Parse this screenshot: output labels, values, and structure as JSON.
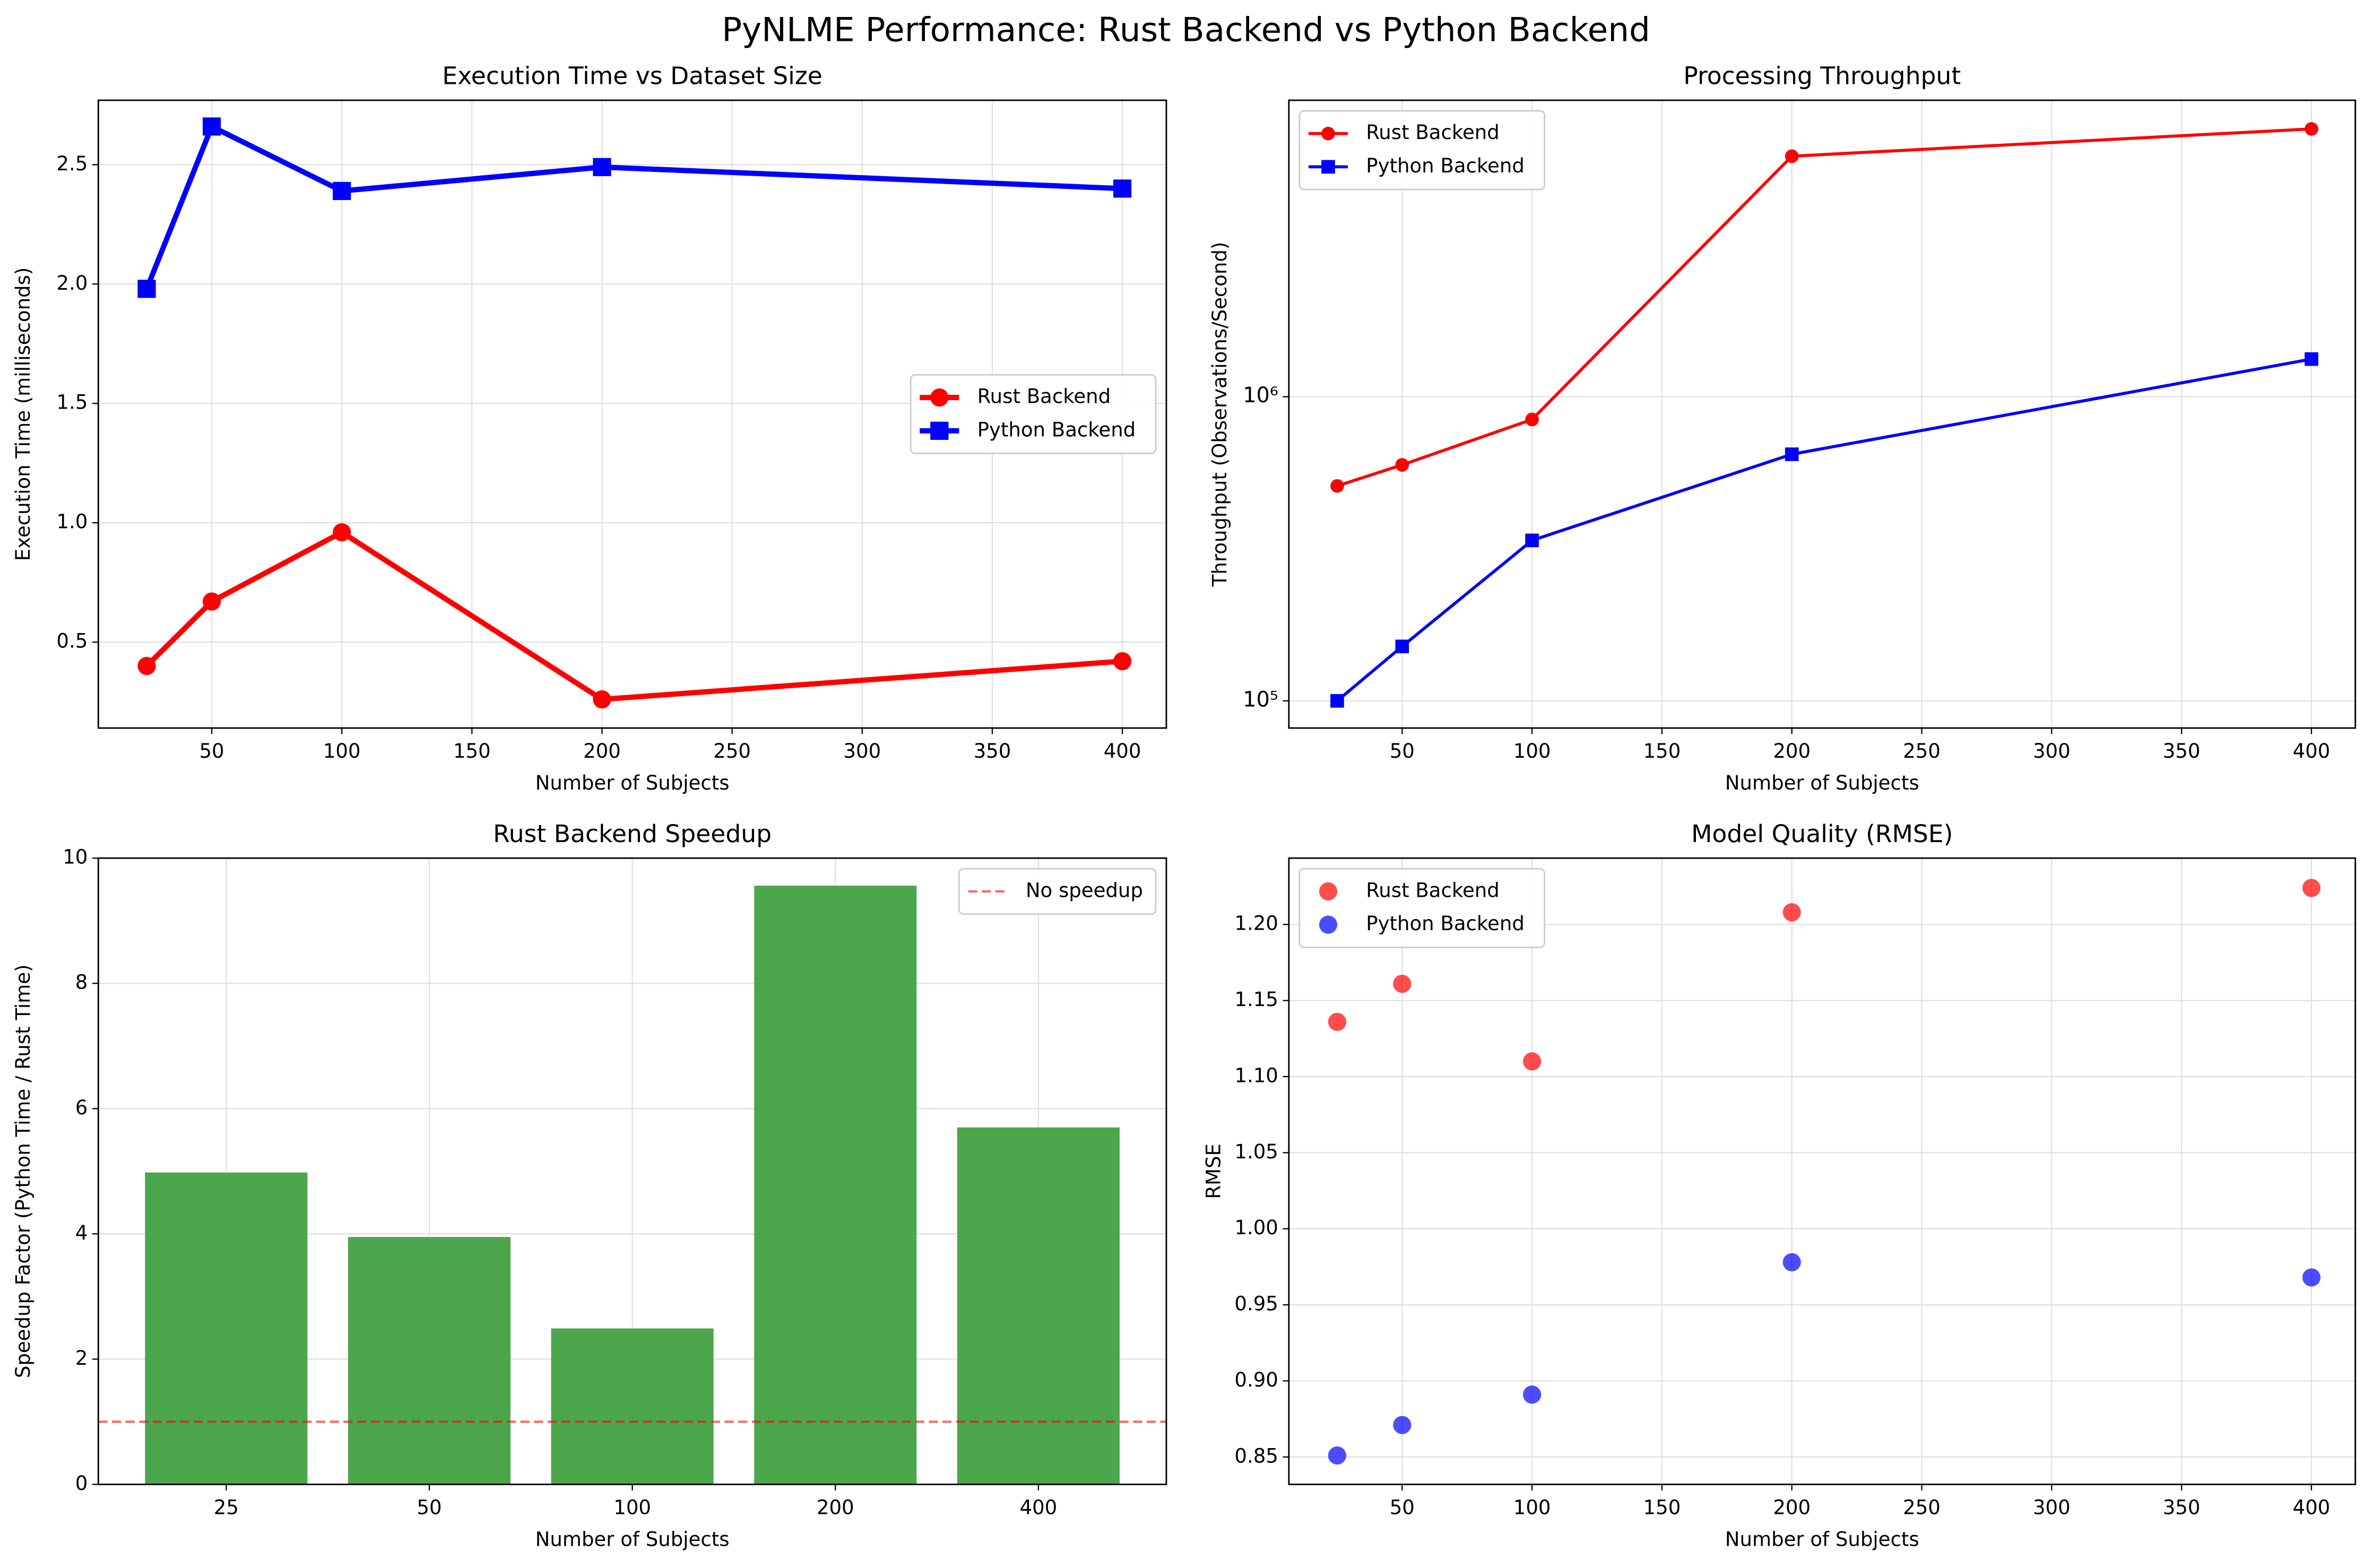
{
  "title": "PyNLME Performance: Rust Backend vs Python Backend",
  "chart_data": [
    {
      "type": "line",
      "title": "Execution Time vs Dataset Size",
      "xlabel": "Number of Subjects",
      "ylabel": "Execution Time (milliseconds)",
      "x": [
        25,
        50,
        100,
        200,
        400
      ],
      "series": [
        {
          "name": "Rust Backend",
          "color": "#ff0000",
          "marker": "circle",
          "values": [
            0.4,
            0.67,
            0.96,
            0.26,
            0.42
          ]
        },
        {
          "name": "Python Backend",
          "color": "#0000ff",
          "marker": "square",
          "values": [
            1.98,
            2.66,
            2.39,
            2.49,
            2.4
          ]
        }
      ],
      "xlim": [
        6.4,
        416.9
      ],
      "xticks": [
        50,
        100,
        150,
        200,
        250,
        300,
        350,
        400
      ],
      "ylim": [
        0.14,
        2.77
      ],
      "yticks": [
        0.5,
        {
          "value": 1,
          "label": "1.0"
        },
        1.5,
        {
          "value": 2,
          "label": "2.0"
        },
        2.5
      ],
      "grid": true,
      "legend": "center right"
    },
    {
      "type": "line",
      "title": "Processing Throughput",
      "xlabel": "Number of Subjects",
      "ylabel": "Throughput (Observations/Second)",
      "x": [
        25,
        50,
        100,
        200,
        400
      ],
      "series": [
        {
          "name": "Rust Backend",
          "color": "#ff0000",
          "marker": "circle",
          "values": [
            509000,
            597000,
            842000,
            6180000,
            7600000
          ]
        },
        {
          "name": "Python Backend",
          "color": "#0000ff",
          "marker": "square",
          "values": [
            100000,
            151000,
            337000,
            647000,
            1330000
          ]
        }
      ],
      "xlim": [
        6.4,
        416.9
      ],
      "xticks": [
        50,
        100,
        150,
        200,
        250,
        300,
        350,
        400
      ],
      "ylim": [
        81400,
        9440000
      ],
      "yticks": [
        {
          "value": 100000,
          "label": "10⁵"
        },
        {
          "value": 1000000,
          "label": "10⁶"
        }
      ],
      "log_y": true,
      "grid": true,
      "legend": "upper left"
    },
    {
      "type": "bar",
      "title": "Rust Backend Speedup",
      "xlabel": "Number of Subjects",
      "ylabel": "Speedup Factor (Python Time / Rust Time)",
      "categories": [
        "25",
        "50",
        "100",
        "200",
        "400"
      ],
      "values": [
        4.98,
        3.95,
        2.49,
        9.56,
        5.7
      ],
      "color": "#4ca64c",
      "ylim": [
        0,
        10
      ],
      "yticks": [
        0,
        2,
        4,
        6,
        8,
        10
      ],
      "hline": {
        "value": 1,
        "label": "No speedup",
        "color": "#ff0000"
      },
      "grid": true,
      "legend": "upper right"
    },
    {
      "type": "scatter",
      "title": "Model Quality (RMSE)",
      "xlabel": "Number of Subjects",
      "ylabel": "RMSE",
      "x": [
        25,
        50,
        100,
        200,
        400
      ],
      "series": [
        {
          "name": "Rust Backend",
          "color": "#ff0000",
          "values": [
            1.136,
            1.161,
            1.11,
            1.208,
            1.224
          ]
        },
        {
          "name": "Python Backend",
          "color": "#0000ff",
          "values": [
            0.851,
            0.871,
            0.891,
            0.978,
            0.968
          ]
        }
      ],
      "xlim": [
        6.4,
        416.9
      ],
      "xticks": [
        50,
        100,
        150,
        200,
        250,
        300,
        350,
        400
      ],
      "ylim": [
        0.832,
        1.2436
      ],
      "yticks": [
        0.85,
        {
          "value": 0.9,
          "label": "0.90"
        },
        0.95,
        {
          "value": 1,
          "label": "1.00"
        },
        1.05,
        {
          "value": 1.1,
          "label": "1.10"
        },
        1.15,
        {
          "value": 1.2,
          "label": "1.20"
        }
      ],
      "grid": true,
      "legend": "upper left"
    }
  ]
}
